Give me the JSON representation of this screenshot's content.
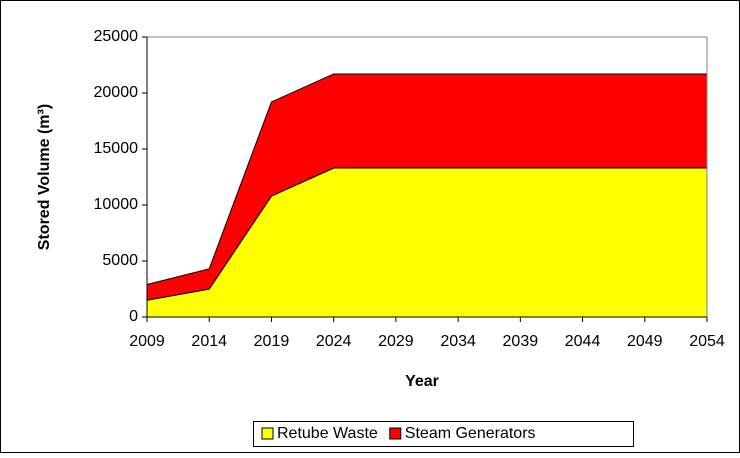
{
  "chart_data": {
    "type": "area",
    "stacked": true,
    "x_label": "Year",
    "y_label": "Stored Volume (m³)",
    "x": [
      2009,
      2014,
      2019,
      2024,
      2029,
      2034,
      2039,
      2044,
      2049,
      2054
    ],
    "series": [
      {
        "name": "Retube Waste",
        "color": "#ffff00",
        "values": [
          1500,
          2500,
          10800,
          13300,
          13300,
          13300,
          13300,
          13300,
          13300,
          13300
        ]
      },
      {
        "name": "Steam Generators",
        "color": "#ff0000",
        "values": [
          1400,
          1800,
          8400,
          8400,
          8400,
          8400,
          8400,
          8400,
          8400,
          8400
        ]
      }
    ],
    "xlim": [
      2009,
      2054
    ],
    "xticks": [
      2009,
      2014,
      2019,
      2024,
      2029,
      2034,
      2039,
      2044,
      2049,
      2054
    ],
    "ylim": [
      0,
      25000
    ],
    "yticks": [
      0,
      5000,
      10000,
      15000,
      20000,
      25000
    ],
    "grid": false,
    "legend": "bottom"
  }
}
